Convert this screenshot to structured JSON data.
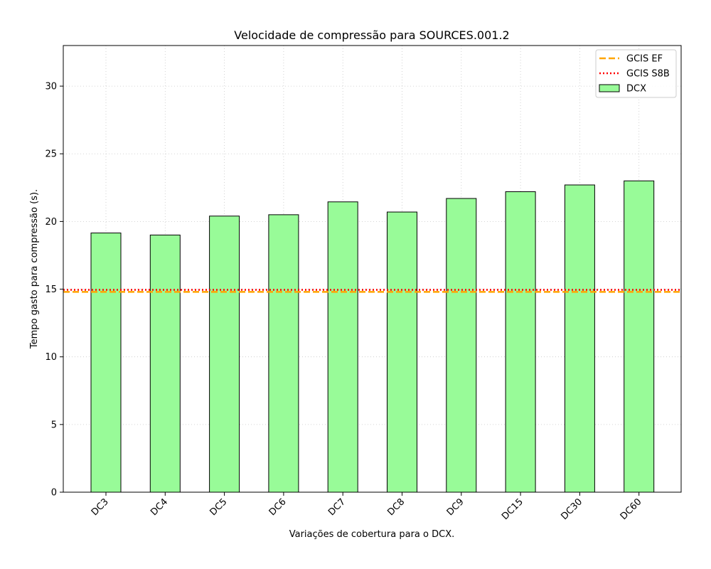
{
  "chart_data": {
    "type": "bar",
    "title": "Velocidade de compressão para  SOURCES.001.2",
    "xlabel": "Variações de cobertura para o DCX.",
    "ylabel": "Tempo gasto para compressão (s).",
    "categories": [
      "DC3",
      "DC4",
      "DC5",
      "DC6",
      "DC7",
      "DC8",
      "DC9",
      "DC15",
      "DC30",
      "DC60"
    ],
    "series": [
      {
        "name": "DCX",
        "values": [
          19.15,
          19.0,
          20.4,
          20.5,
          21.45,
          20.7,
          21.7,
          22.2,
          22.7,
          23.0
        ],
        "color": "#98fb98"
      }
    ],
    "reference_lines": [
      {
        "name": "GCIS EF",
        "value": 14.8,
        "color": "#ffa500",
        "style": "dashed"
      },
      {
        "name": "GCIS S8B",
        "value": 14.95,
        "color": "#ff0000",
        "style": "dotted"
      }
    ],
    "ylim": [
      0,
      33
    ],
    "yticks": [
      0,
      5,
      10,
      15,
      20,
      25,
      30
    ],
    "grid": true,
    "legend_position": "top-right"
  }
}
